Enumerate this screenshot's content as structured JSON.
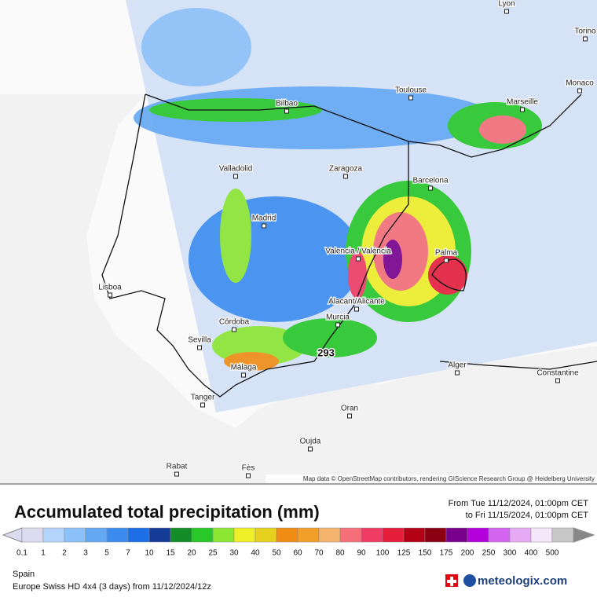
{
  "map": {
    "cities": [
      "Lyon",
      "Torino",
      "Monaco",
      "Bilbao",
      "Toulouse",
      "Marseille",
      "Valladolid",
      "Zaragoza",
      "Barcelona",
      "Madrid",
      "Valencia / València",
      "Palma",
      "Lisboa",
      "Alacant/Alicante",
      "Murcia",
      "Córdoba",
      "Sevilla",
      "Málaga",
      "Alger",
      "Constantine",
      "Tanger",
      "Oran",
      "Oujda",
      "Rabat",
      "Fès"
    ],
    "max_label": "293",
    "attribution": "Map data © OpenStreetMap contributors, rendering GIScience Research Group @ Heidelberg University"
  },
  "header": {
    "title": "Accumulated total precipitation (mm)",
    "from": "From Tue 11/12/2024, 01:00pm CET",
    "to": "to Fri 11/15/2024, 01:00pm CET"
  },
  "legend": [
    {
      "value": 0.1,
      "color": "#dcdcf0"
    },
    {
      "value": 1,
      "color": "#b4d4fa"
    },
    {
      "value": 2,
      "color": "#8cc0f8"
    },
    {
      "value": 3,
      "color": "#64a8f4"
    },
    {
      "value": 5,
      "color": "#3c8cf0"
    },
    {
      "value": 7,
      "color": "#1e6ee6"
    },
    {
      "value": 10,
      "color": "#143c96"
    },
    {
      "value": 15,
      "color": "#148c28"
    },
    {
      "value": 20,
      "color": "#28c828"
    },
    {
      "value": 25,
      "color": "#8ce632"
    },
    {
      "value": 30,
      "color": "#f0f028"
    },
    {
      "value": 40,
      "color": "#e6d21e"
    },
    {
      "value": 50,
      "color": "#f08c14"
    },
    {
      "value": 60,
      "color": "#f0a028"
    },
    {
      "value": 70,
      "color": "#f5b46e"
    },
    {
      "value": 80,
      "color": "#f56e78"
    },
    {
      "value": 90,
      "color": "#f03c64"
    },
    {
      "value": 100,
      "color": "#e61e3c"
    },
    {
      "value": 125,
      "color": "#b40014"
    },
    {
      "value": 150,
      "color": "#8c0014"
    },
    {
      "value": 175,
      "color": "#78008c"
    },
    {
      "value": 200,
      "color": "#b400dc"
    },
    {
      "value": 250,
      "color": "#d264f0"
    },
    {
      "value": 300,
      "color": "#e6aaf5"
    },
    {
      "value": 400,
      "color": "#f5e6fa"
    },
    {
      "value": 500,
      "color": "#c8c8c8"
    }
  ],
  "footer": {
    "region": "Spain",
    "model": "Europe Swiss HD 4x4 (3 days) from 11/12/2024/12z",
    "brand": "meteologix.com"
  }
}
